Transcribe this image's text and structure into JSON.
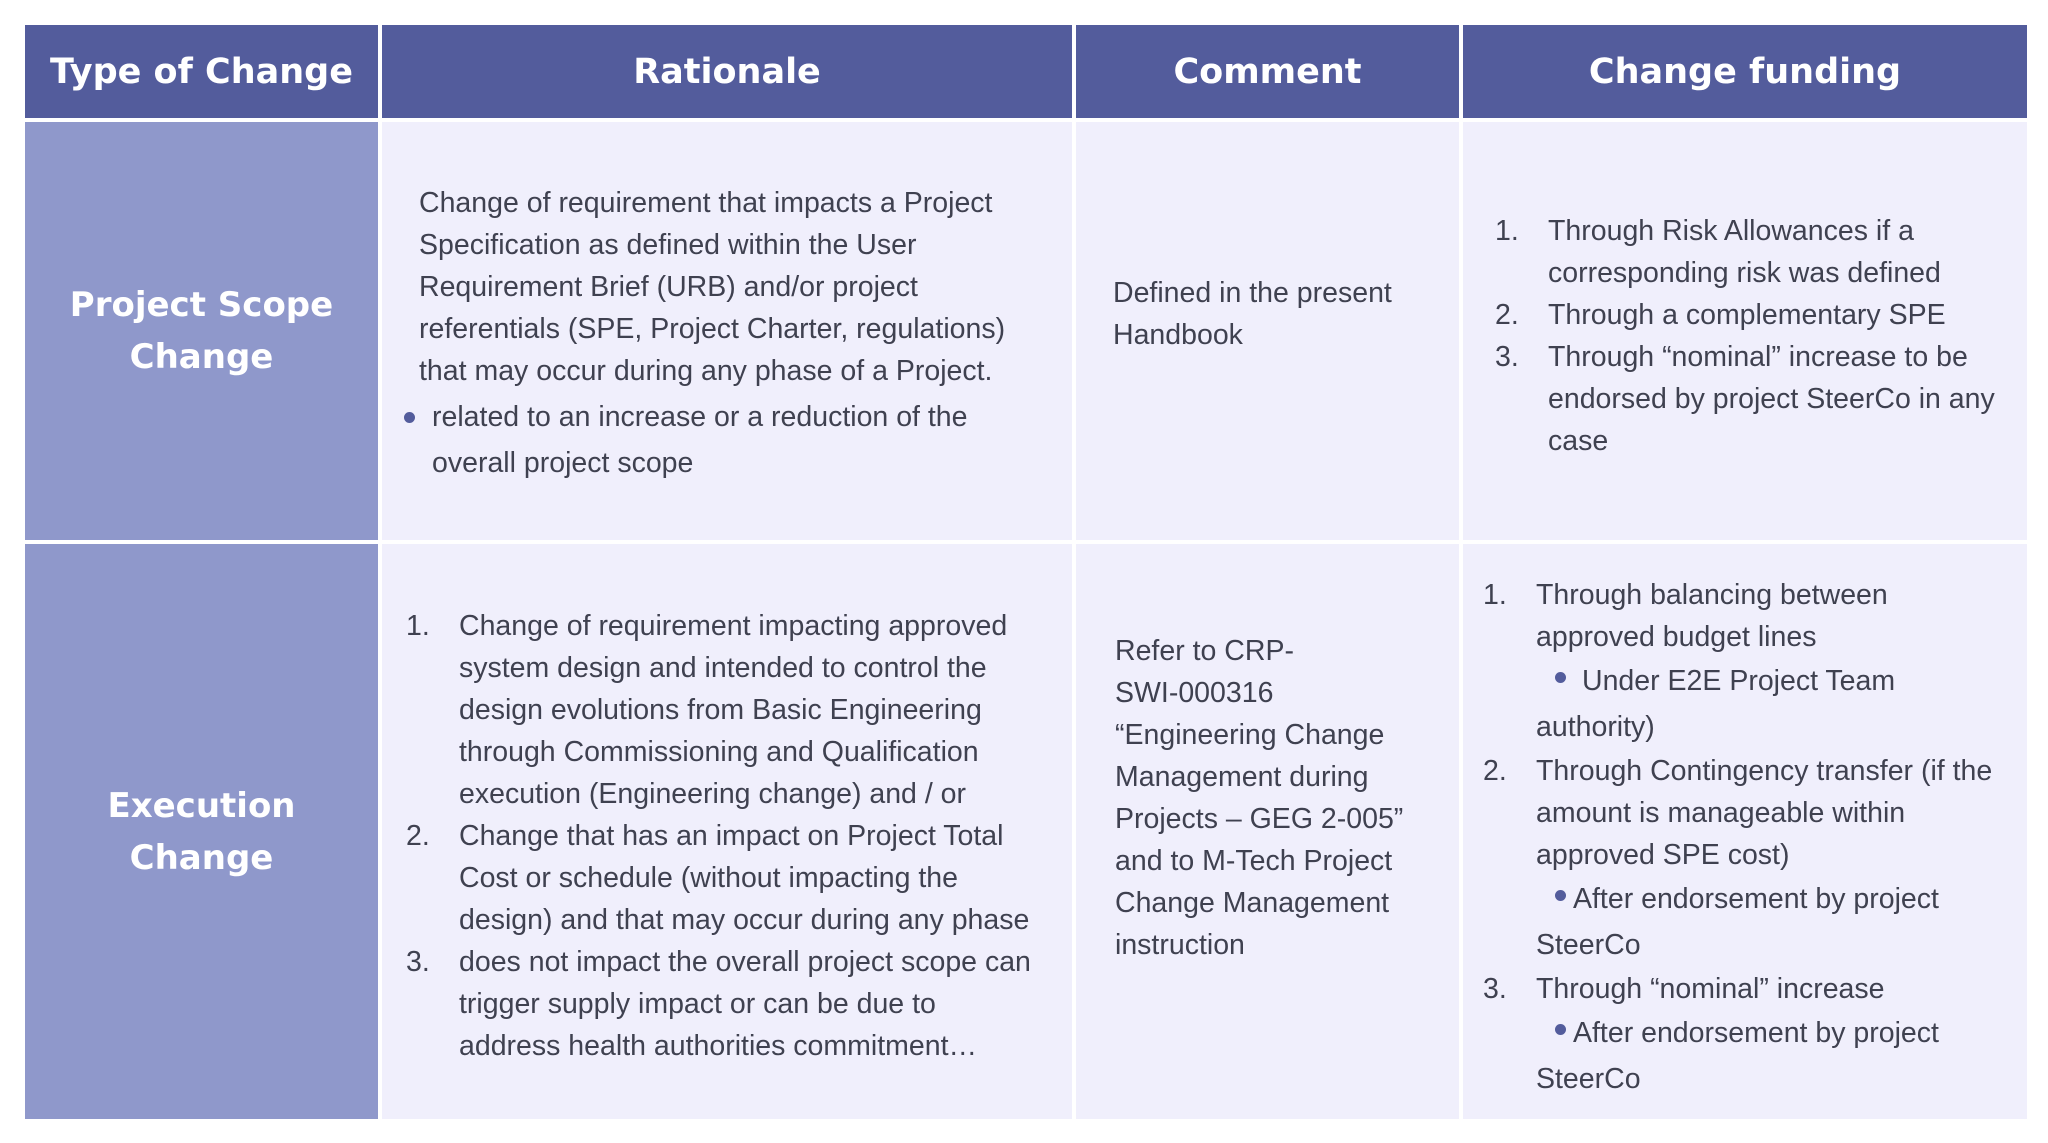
{
  "headers": [
    "Type of Change",
    "Rationale",
    "Comment",
    "Change funding"
  ],
  "rows": [
    {
      "type_lines": [
        "Project Scope",
        "Change"
      ],
      "rationale": {
        "para_lines": [
          "Change of requirement that impacts a Project",
          "Specification as defined within the User",
          "Requirement Brief (URB) and/or project",
          "referentials (SPE, Project Charter, regulations)",
          "that may occur during any phase of a Project."
        ],
        "bullet_lines": [
          "related to an increase or a reduction of the",
          "overall project scope"
        ]
      },
      "comment_lines": [
        "Defined in the present",
        "Handbook"
      ],
      "funding": [
        {
          "num": "1.",
          "lines": [
            "Through Risk Allowances if a",
            "corresponding risk was defined"
          ]
        },
        {
          "num": "2.",
          "lines": [
            "Through a complementary SPE"
          ]
        },
        {
          "num": "3.",
          "lines": [
            "Through “nominal” increase to be",
            "endorsed by project SteerCo in any",
            "case"
          ]
        }
      ]
    },
    {
      "type_lines": [
        "Execution",
        "Change"
      ],
      "rationale_items": [
        {
          "num": "1.",
          "lines": [
            "Change of requirement impacting approved",
            "system design and intended to control the",
            "design evolutions from Basic Engineering",
            "through Commissioning and Qualification",
            "execution (Engineering change) and / or"
          ]
        },
        {
          "num": "2.",
          "lines": [
            "Change that has an impact on Project Total",
            "Cost or schedule (without impacting the",
            "design) and that may occur during any phase"
          ]
        },
        {
          "num": "3.",
          "lines": [
            "does not impact the overall project scope can",
            "trigger supply impact or can be due to",
            "address health authorities commitment…"
          ]
        }
      ],
      "comment_lines": [
        "Refer to CRP-",
        "SWI-000316",
        "“Engineering Change",
        "Management during",
        "Projects – GEG 2-005”",
        "and to M-Tech Project",
        "Change Management",
        "instruction"
      ],
      "funding": [
        {
          "num": "1.",
          "lines": [
            "Through balancing between",
            "approved budget lines"
          ],
          "bullet": [
            "Under E2E Project Team",
            "authority)"
          ]
        },
        {
          "num": "2.",
          "lines": [
            "Through Contingency transfer (if the",
            "amount is manageable within",
            "approved SPE cost)"
          ],
          "bullet": [
            "After endorsement by project",
            "SteerCo"
          ]
        },
        {
          "num": "3.",
          "lines": [
            "Through “nominal” increase"
          ],
          "bullet": [
            "After endorsement by project",
            "SteerCo"
          ]
        }
      ]
    }
  ]
}
